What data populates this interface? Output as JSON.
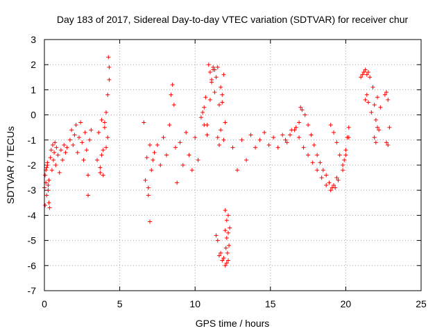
{
  "chart_data": {
    "type": "scatter",
    "title": "Day 183 of 2017, Sidereal Day-to-day VTEC variation (SDTVAR) for receiver chur",
    "xlabel": "GPS time / hours",
    "ylabel": "SDTVAR / TECUs",
    "xlim": [
      0,
      25
    ],
    "ylim": [
      -7,
      3
    ],
    "x_ticks": [
      "0",
      "5",
      "10",
      "15",
      "20",
      "25"
    ],
    "y_ticks": [
      "3",
      "2",
      "1",
      "0",
      "-1",
      "-2",
      "-3",
      "-4",
      "-5",
      "-6",
      "-7"
    ],
    "grid": true,
    "marker": "plus",
    "color": "#ff0000",
    "series": [
      {
        "name": "SDTVAR",
        "x": [
          0.0,
          0.05,
          0.1,
          0.15,
          0.2,
          0.25,
          0.3,
          0.35,
          0.05,
          0.1,
          0.15,
          0.2,
          0.25,
          0.3,
          0.4,
          0.45,
          0.5,
          0.55,
          0.6,
          0.65,
          0.7,
          0.75,
          0.8,
          0.9,
          1.0,
          1.1,
          1.2,
          1.3,
          1.4,
          1.5,
          1.7,
          1.8,
          1.9,
          2.0,
          2.1,
          2.2,
          2.3,
          2.4,
          2.5,
          2.6,
          2.7,
          2.8,
          2.9,
          3.0,
          3.1,
          2.9,
          3.5,
          3.6,
          3.7,
          3.8,
          3.9,
          4.0,
          4.1,
          4.2,
          4.3,
          4.25,
          4.3,
          4.2,
          4.1,
          4.0,
          3.9,
          3.8,
          3.7,
          6.6,
          6.7,
          6.8,
          6.9,
          7.0,
          7.1,
          7.2,
          6.9,
          7.0,
          7.3,
          7.5,
          7.7,
          7.9,
          8.1,
          8.3,
          8.4,
          8.5,
          8.6,
          8.7,
          8.8,
          9.0,
          9.2,
          9.4,
          9.6,
          9.8,
          10.0,
          10.2,
          10.4,
          10.6,
          10.8,
          11.0,
          11.1,
          11.2,
          11.3,
          11.4,
          11.5,
          11.6,
          11.7,
          11.8,
          11.9,
          10.9,
          11.0,
          11.1,
          11.2,
          11.3,
          10.5,
          10.6,
          10.7,
          10.8,
          11.5,
          11.6,
          11.7,
          11.8,
          11.9,
          12.0,
          11.4,
          11.5,
          11.6,
          11.7,
          11.8,
          11.9,
          12.0,
          12.1,
          12.2,
          12.0,
          12.05,
          12.1,
          12.15,
          12.2,
          12.25,
          12.3,
          12.0,
          12.1,
          12.2,
          12.5,
          12.8,
          13.1,
          13.4,
          13.7,
          14.0,
          14.3,
          14.6,
          14.9,
          15.2,
          15.5,
          15.8,
          16.1,
          16.4,
          16.7,
          16.9,
          17.0,
          17.1,
          17.3,
          17.5,
          17.7,
          17.9,
          18.1,
          18.3,
          18.5,
          18.7,
          18.9,
          19.1,
          19.3,
          19.5,
          16.0,
          16.3,
          16.6,
          16.9,
          17.2,
          17.5,
          17.8,
          18.1,
          18.4,
          18.7,
          19.0,
          19.2,
          19.4,
          19.0,
          19.2,
          19.4,
          19.6,
          19.8,
          19.9,
          20.0,
          20.1,
          20.2,
          19.8,
          20.0,
          20.2,
          21.0,
          21.1,
          21.2,
          21.3,
          21.4,
          21.5,
          21.6,
          21.3,
          21.4,
          21.5,
          21.7,
          21.8,
          21.9,
          22.0,
          22.1,
          22.2,
          22.3,
          21.9,
          22.0,
          22.1,
          22.6,
          22.7,
          22.8,
          22.9,
          22.7,
          22.8
        ],
        "y": [
          -2.9,
          -3.6,
          -2.2,
          -3.2,
          -2.0,
          -2.8,
          -3.5,
          -3.7,
          -2.4,
          -2.7,
          -2.1,
          -1.9,
          -3.0,
          -2.6,
          -1.7,
          -1.4,
          -2.2,
          -1.2,
          -1.8,
          -1.5,
          -1.1,
          -2.0,
          -1.3,
          -1.6,
          -2.3,
          -1.4,
          -1.8,
          -1.2,
          -1.5,
          -1.3,
          -1.0,
          -0.6,
          -1.2,
          -0.8,
          -0.4,
          -1.5,
          -0.9,
          -0.3,
          -1.1,
          -1.8,
          -0.7,
          -1.4,
          -2.4,
          -1.0,
          -0.6,
          -3.2,
          -1.8,
          -0.7,
          -2.3,
          -0.2,
          -1.4,
          -0.5,
          0.1,
          0.8,
          1.4,
          2.3,
          1.9,
          -0.9,
          -1.3,
          -0.3,
          -2.4,
          -1.6,
          -2.1,
          -0.3,
          -2.6,
          -1.7,
          -2.9,
          -1.2,
          -2.2,
          -1.8,
          -3.2,
          -4.25,
          -1.5,
          -1.2,
          -2.0,
          -0.9,
          -1.6,
          -0.4,
          0.8,
          1.2,
          0.4,
          -1.3,
          -2.7,
          -1.1,
          -2.0,
          -0.7,
          -1.6,
          -2.2,
          -0.9,
          -1.8,
          -0.1,
          0.3,
          -0.4,
          0.6,
          1.3,
          1.8,
          0.9,
          1.5,
          1.9,
          0.4,
          1.1,
          0.8,
          1.6,
          2.0,
          1.7,
          1.4,
          1.9,
          1.8,
          0.1,
          -0.4,
          0.7,
          -0.8,
          -0.9,
          -1.2,
          -0.6,
          0.5,
          -1.0,
          -0.3,
          -4.8,
          -5.0,
          -5.6,
          -5.5,
          -5.8,
          -5.7,
          -6.0,
          -5.9,
          -5.8,
          -4.6,
          -5.3,
          -4.9,
          -5.5,
          -4.7,
          -5.2,
          -4.5,
          -3.8,
          -4.2,
          -4.0,
          -1.3,
          -2.2,
          -1.0,
          -1.8,
          -0.8,
          -1.3,
          -1.0,
          -0.7,
          -1.2,
          -0.9,
          -1.3,
          -0.8,
          -1.1,
          -0.6,
          -0.5,
          -0.3,
          0.3,
          0.2,
          0.0,
          -0.4,
          -0.8,
          -1.2,
          -1.6,
          -1.9,
          -2.2,
          -2.4,
          -2.7,
          -2.9,
          -2.9,
          -2.6,
          -1.0,
          -0.8,
          -0.6,
          -0.9,
          -1.3,
          -1.6,
          -1.9,
          -2.2,
          -2.5,
          -2.8,
          -3.0,
          -2.8,
          -2.5,
          -0.4,
          -0.7,
          -1.1,
          -1.6,
          -2.0,
          -1.8,
          -1.4,
          -0.9,
          -0.5,
          -2.2,
          -1.6,
          -0.9,
          1.5,
          1.6,
          1.7,
          1.8,
          1.6,
          1.7,
          1.5,
          0.6,
          0.8,
          0.5,
          0.1,
          1.1,
          0.4,
          -0.2,
          0.7,
          -0.6,
          0.3,
          -0.9,
          -1.1,
          -0.5,
          0.8,
          0.9,
          0.6,
          -0.5,
          -1.1,
          -1.2
        ]
      }
    ]
  }
}
